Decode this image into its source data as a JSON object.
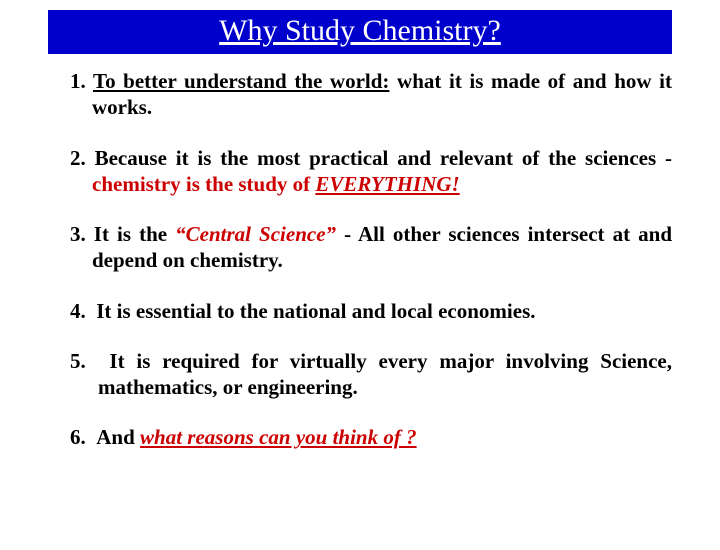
{
  "title": "Why Study Chemistry?",
  "colors": {
    "title_bg": "#0000cc",
    "title_text": "#ffffff",
    "body_text": "#000000",
    "emphasis": "#cc0000",
    "page_bg": "#ffffff"
  },
  "typography": {
    "title_fontsize": 30,
    "body_fontsize": 21,
    "font_family": "Times New Roman"
  },
  "items": {
    "i1": {
      "num": "1.",
      "lead": "To better understand the world:",
      "rest": "  what it is made of and how it works."
    },
    "i2": {
      "num": "2.",
      "lead": "  Because it is the most practical and relevant of the sciences - ",
      "emph": "chemistry is the study of ",
      "emph2": "EVERYTHING!"
    },
    "i3": {
      "num": "3.",
      "lead": "  It is the ",
      "quote": "“Central Science”",
      "rest": " - All other sciences intersect at and depend on chemistry."
    },
    "i4": {
      "num": "4.",
      "text": "It is essential to the national and local economies."
    },
    "i5": {
      "num": "5.",
      "text": "It is required for virtually every major involving Science, mathematics, or engineering."
    },
    "i6": {
      "num": "6.",
      "lead": "And ",
      "emph": "what reasons can you think of ?"
    }
  }
}
